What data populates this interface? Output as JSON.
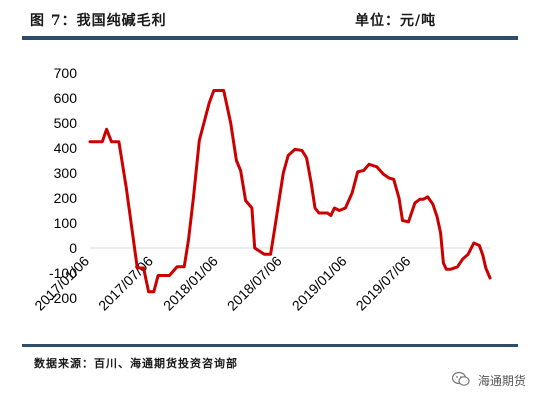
{
  "header": {
    "title": "图 7：我国纯碱毛利",
    "unit": "单位：元/吨"
  },
  "footer": {
    "source": "数据来源：百川、海通期货投资咨询部",
    "watermark": "海通期货"
  },
  "colors": {
    "series": "#cc0000",
    "rule": "#2e4d6b",
    "zero_line": "#d9d9d9"
  },
  "icons": {
    "watermark_icon": "wechat-icon"
  },
  "chart_data": {
    "type": "line",
    "title": "",
    "xlabel": "",
    "ylabel": "",
    "ylim": [
      -100,
      700
    ],
    "yticks": [
      700,
      600,
      500,
      400,
      300,
      200,
      100,
      0,
      -100,
      -200
    ],
    "grid": false,
    "legend": "none",
    "xlim": [
      "2017-01-06",
      "2020-02-14"
    ],
    "xtick_labels": [
      {
        "date": "2017-01-06",
        "label": "2017/01/06"
      },
      {
        "date": "2017-07-06",
        "label": "2017/07/06"
      },
      {
        "date": "2018-01-06",
        "label": "2018/01/06"
      },
      {
        "date": "2018-07-06",
        "label": "2018/07/06"
      },
      {
        "date": "2019-01-06",
        "label": "2019/01/06"
      },
      {
        "date": "2019-07-06",
        "label": "2019/07/06"
      }
    ],
    "series": [
      {
        "points": [
          [
            "2017-01-06",
            425
          ],
          [
            "2017-02-10",
            425
          ],
          [
            "2017-02-22",
            475
          ],
          [
            "2017-03-08",
            425
          ],
          [
            "2017-03-29",
            425
          ],
          [
            "2017-04-19",
            240
          ],
          [
            "2017-05-20",
            -80
          ],
          [
            "2017-06-07",
            -80
          ],
          [
            "2017-06-21",
            -175
          ],
          [
            "2017-07-06",
            -175
          ],
          [
            "2017-07-18",
            -110
          ],
          [
            "2017-08-19",
            -110
          ],
          [
            "2017-09-10",
            -75
          ],
          [
            "2017-09-30",
            -75
          ],
          [
            "2017-10-12",
            30
          ],
          [
            "2017-10-26",
            200
          ],
          [
            "2017-11-12",
            430
          ],
          [
            "2017-12-10",
            580
          ],
          [
            "2017-12-23",
            630
          ],
          [
            "2018-01-20",
            630
          ],
          [
            "2018-02-09",
            500
          ],
          [
            "2018-02-25",
            350
          ],
          [
            "2018-03-09",
            310
          ],
          [
            "2018-03-23",
            190
          ],
          [
            "2018-04-10",
            160
          ],
          [
            "2018-04-18",
            0
          ],
          [
            "2018-05-15",
            -25
          ],
          [
            "2018-06-02",
            -25
          ],
          [
            "2018-06-14",
            80
          ],
          [
            "2018-06-27",
            200
          ],
          [
            "2018-07-08",
            300
          ],
          [
            "2018-07-22",
            370
          ],
          [
            "2018-08-10",
            395
          ],
          [
            "2018-08-30",
            390
          ],
          [
            "2018-09-12",
            360
          ],
          [
            "2018-09-25",
            260
          ],
          [
            "2018-10-06",
            160
          ],
          [
            "2018-10-17",
            140
          ],
          [
            "2018-11-10",
            140
          ],
          [
            "2018-11-20",
            130
          ],
          [
            "2018-11-30",
            160
          ],
          [
            "2018-12-14",
            150
          ],
          [
            "2018-12-31",
            160
          ],
          [
            "2019-01-19",
            220
          ],
          [
            "2019-02-04",
            305
          ],
          [
            "2019-02-21",
            310
          ],
          [
            "2019-03-08",
            335
          ],
          [
            "2019-03-30",
            325
          ],
          [
            "2019-04-18",
            295
          ],
          [
            "2019-05-04",
            280
          ],
          [
            "2019-05-17",
            275
          ],
          [
            "2019-06-01",
            200
          ],
          [
            "2019-06-11",
            110
          ],
          [
            "2019-06-28",
            105
          ],
          [
            "2019-07-16",
            180
          ],
          [
            "2019-07-30",
            195
          ],
          [
            "2019-08-09",
            195
          ],
          [
            "2019-08-21",
            205
          ],
          [
            "2019-09-05",
            175
          ],
          [
            "2019-09-17",
            125
          ],
          [
            "2019-09-27",
            60
          ],
          [
            "2019-10-05",
            -60
          ],
          [
            "2019-10-13",
            -85
          ],
          [
            "2019-10-25",
            -85
          ],
          [
            "2019-11-14",
            -75
          ],
          [
            "2019-11-28",
            -45
          ],
          [
            "2019-12-14",
            -25
          ],
          [
            "2019-12-30",
            20
          ],
          [
            "2020-01-15",
            10
          ],
          [
            "2020-01-25",
            -30
          ],
          [
            "2020-02-02",
            -80
          ],
          [
            "2020-02-14",
            -120
          ]
        ]
      }
    ]
  }
}
